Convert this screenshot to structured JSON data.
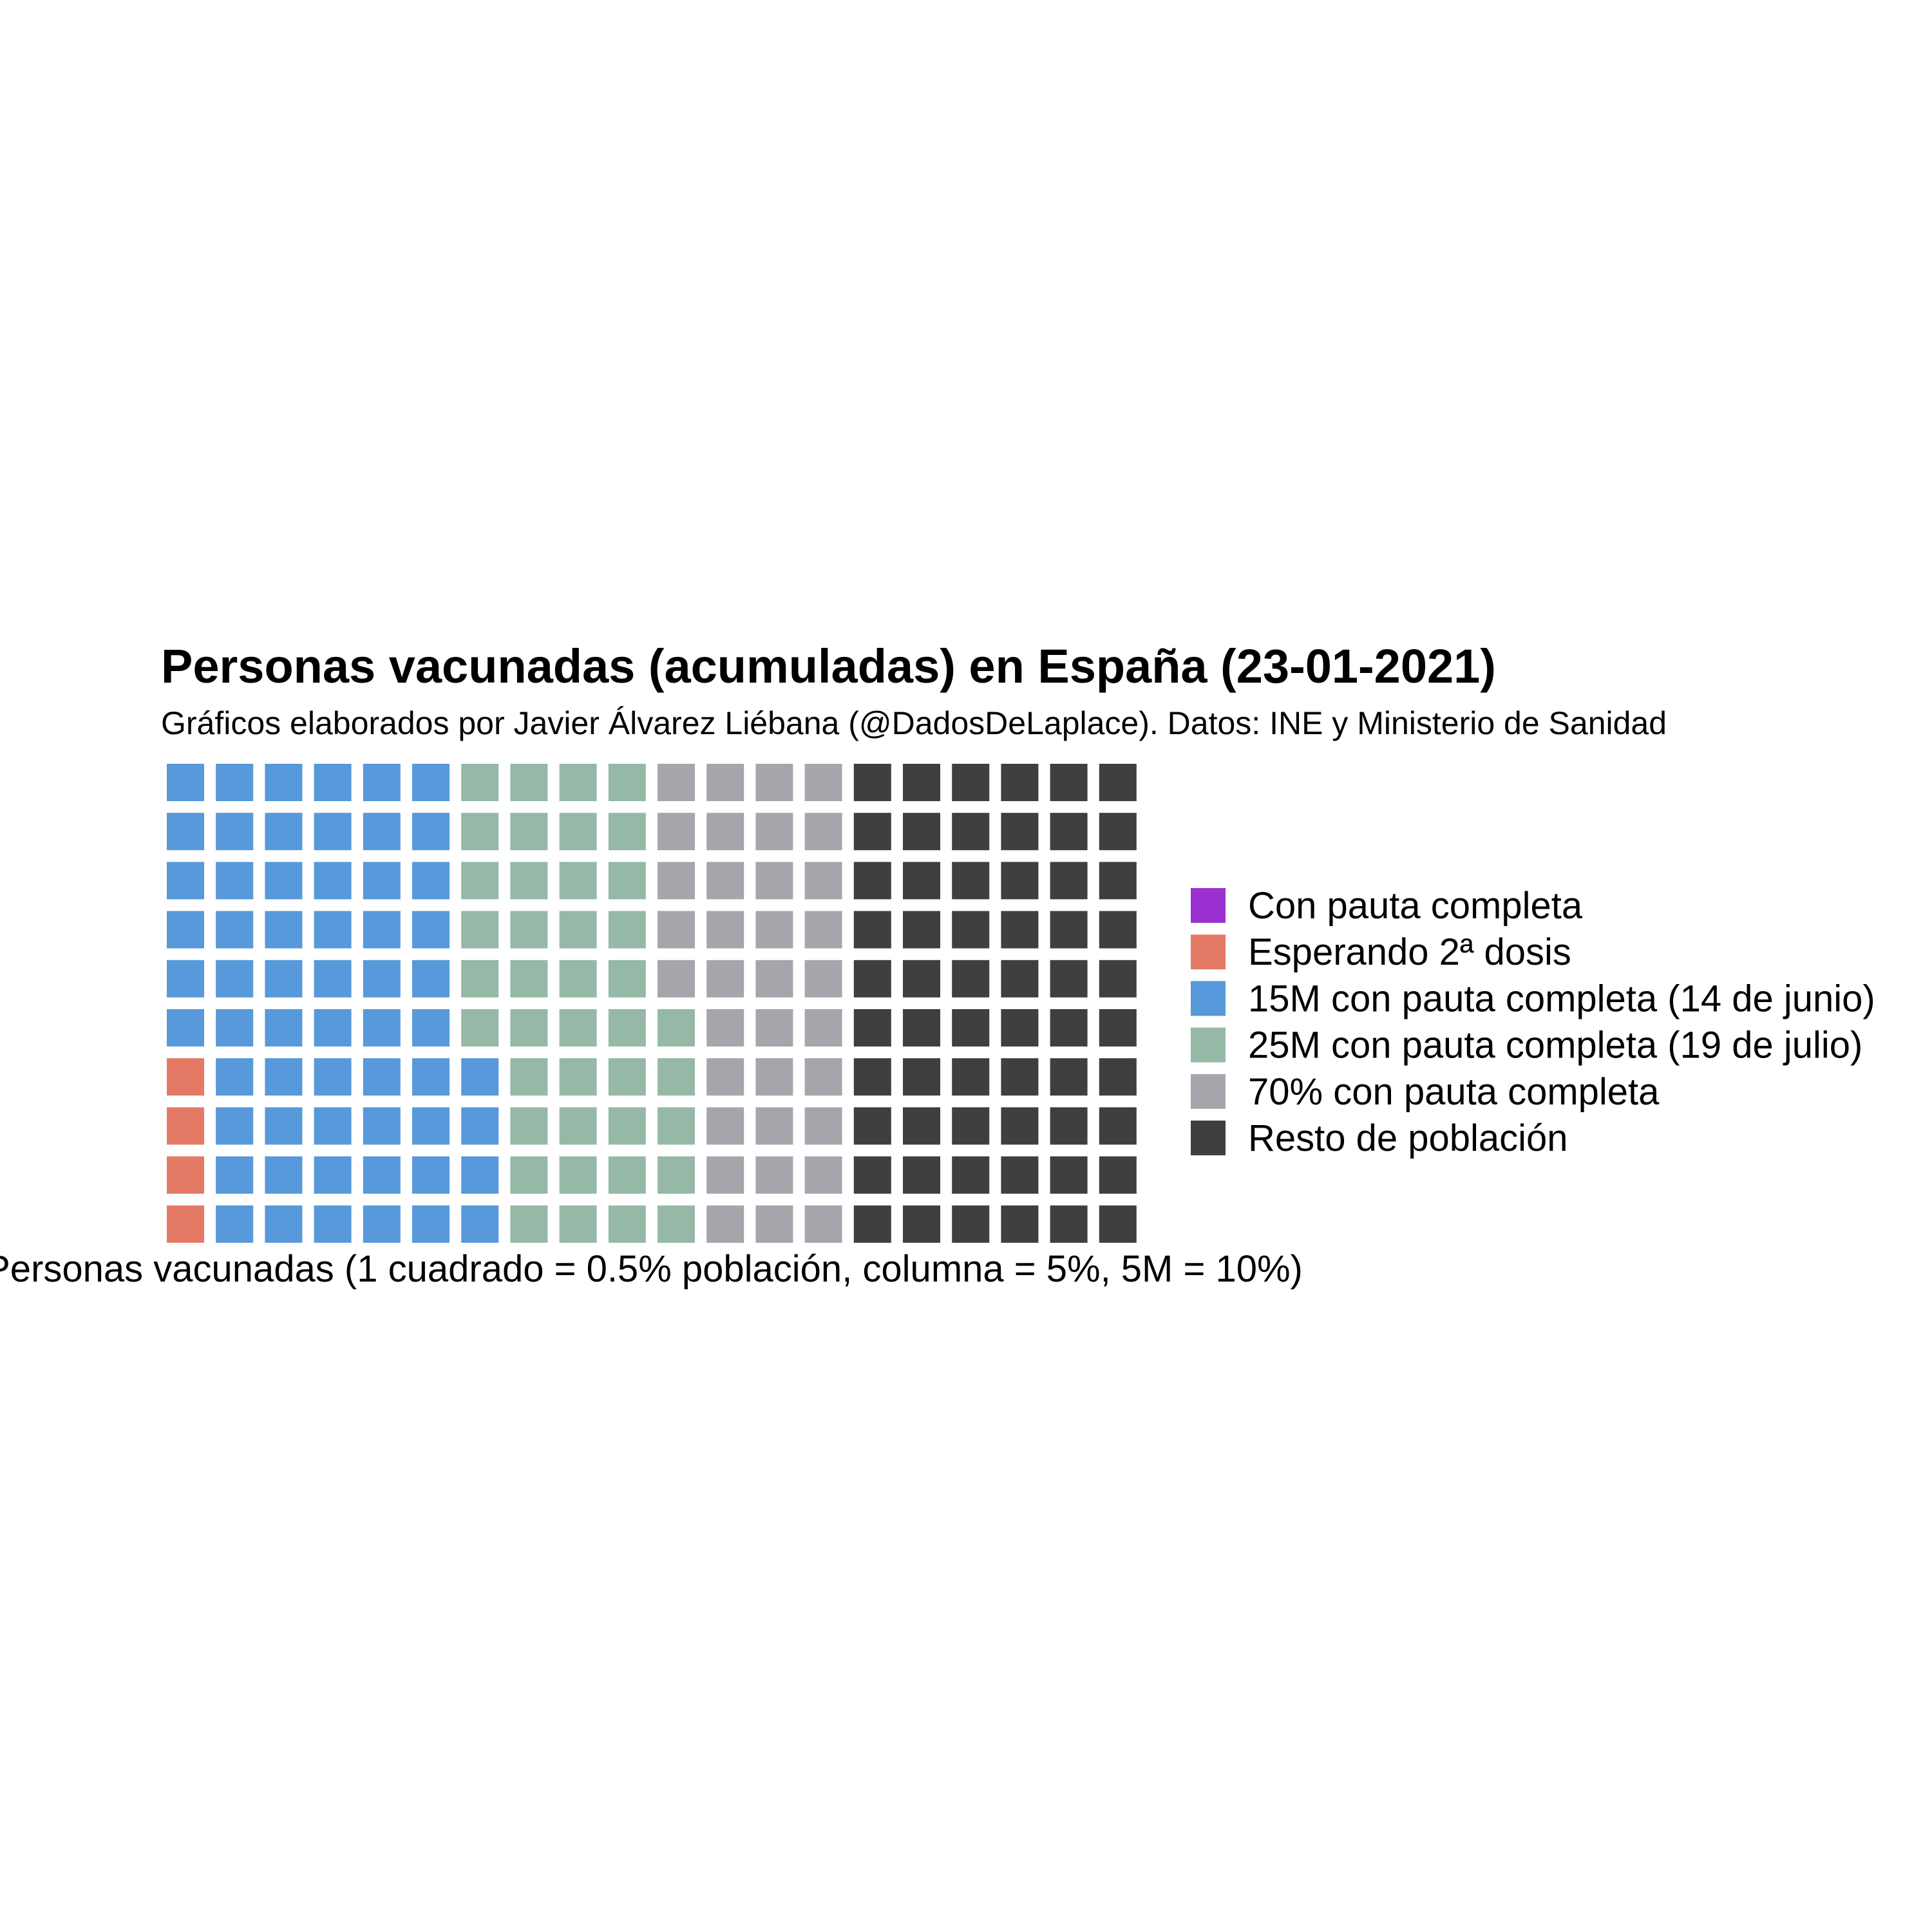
{
  "chart_data": {
    "type": "waffle",
    "title": "Personas vacunadas (acumuladas) en España (23-01-2021)",
    "subtitle": "Gráficos elaborados por Javier Álvarez Liébana (@DadosDeLaplace). Datos: INE y Ministerio de Sanidad",
    "xlabel": "Personas vacunadas (1 cuadrado = 0.5% población, columna = 5%, 5M = 10%)",
    "ylabel": "",
    "grid": {
      "columns": 20,
      "rows": 10
    },
    "legend_position": "right",
    "series": [
      {
        "name": "Con pauta completa",
        "squares": 0,
        "color": "#9B30D0"
      },
      {
        "name": "Esperando 2ª dosis",
        "squares": 4,
        "color": "#E47A66"
      },
      {
        "name": "15M con pauta completa (14 de junio)",
        "squares": 60,
        "color": "#5799DA"
      },
      {
        "name": "25M con pauta completa (19 de julio)",
        "squares": 41,
        "color": "#96B8A7"
      },
      {
        "name": "70% con pauta completa",
        "squares": 35,
        "color": "#A4A6AB"
      },
      {
        "name": "Resto de población",
        "squares": 60,
        "color": "#3F3F3F"
      }
    ]
  }
}
